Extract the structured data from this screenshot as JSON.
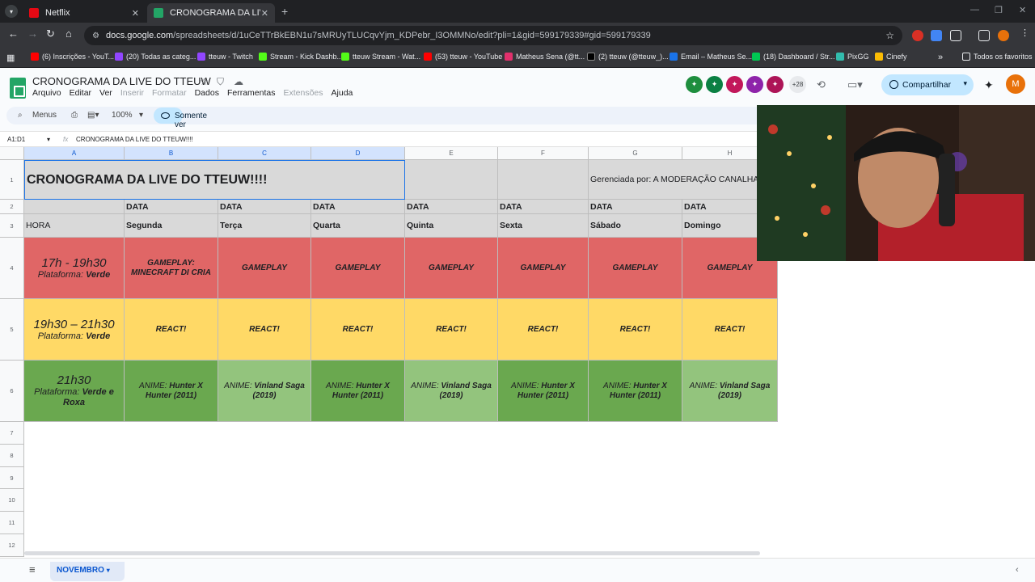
{
  "browser": {
    "tabs": [
      {
        "title": "Netflix",
        "close": "✕",
        "color": "#e50914"
      },
      {
        "title": "CRONOGRAMA DA LIVE DO TTEUW",
        "close": "✕",
        "color": "#23a566"
      }
    ],
    "new_tab": "+",
    "url_domain": "docs.google.com",
    "url_path": "/spreadsheets/d/1uCeTTrBkEBN1u7sMRUyTLUCqvYjm_KDPebr_I3OMMNo/edit?pli=1&gid=599179339#gid=599179339",
    "bookmarks": [
      {
        "label": "(6) Inscrições - YouT...",
        "color": "#ff0000"
      },
      {
        "label": "(20) Todas as categ...",
        "color": "#9146ff"
      },
      {
        "label": "tteuw - Twitch",
        "color": "#9146ff"
      },
      {
        "label": "Stream - Kick Dashb...",
        "color": "#53fc18"
      },
      {
        "label": "tteuw Stream - Wat...",
        "color": "#53fc18"
      },
      {
        "label": "(53) tteuw - YouTube",
        "color": "#ff0000"
      },
      {
        "label": "Matheus Sena (@tt...",
        "color": "#e1306c"
      },
      {
        "label": "(2) tteuw (@tteuw_)...",
        "color": "#000000"
      },
      {
        "label": "Email – Matheus Se...",
        "color": "#1a73e8"
      },
      {
        "label": "(18) Dashboard / Str...",
        "color": "#00c853"
      },
      {
        "label": "PixGG",
        "color": "#32bcad"
      },
      {
        "label": "Cinefy",
        "color": "#fbbc04"
      }
    ],
    "bookmarks_more": "»",
    "all_favorites": "Todos os favoritos"
  },
  "doc": {
    "title": "CRONOGRAMA DA LIVE DO TTEUW",
    "menus": [
      "Arquivo",
      "Editar",
      "Ver",
      "Inserir",
      "Formatar",
      "Dados",
      "Ferramentas",
      "Extensões",
      "Ajuda"
    ],
    "collaborators_more": "+28",
    "share_label": "Compartilhar",
    "user_initial": "M"
  },
  "toolbar": {
    "search_label": "Menus",
    "zoom": "100%",
    "view_only": "Somente ver"
  },
  "formula_bar": {
    "cell_ref": "A1:D1",
    "fx": "fx",
    "content": "CRONOGRAMA DA LIVE DO TTEUW!!!!"
  },
  "sheet": {
    "columns": [
      "A",
      "B",
      "C",
      "D",
      "E",
      "F",
      "G",
      "H"
    ],
    "rows": [
      "1",
      "2",
      "3",
      "4",
      "5",
      "6",
      "7",
      "8",
      "9",
      "10",
      "11",
      "12"
    ],
    "title": "CRONOGRAMA DA LIVE DO TTEUW!!!!",
    "managed_by": "Gerenciada por: A MODERAÇÃO CANALHA",
    "date_label": "DATA",
    "hour_label": "HORA",
    "days": [
      "Segunda",
      "Terça",
      "Quarta",
      "Quinta",
      "Sexta",
      "Sábado",
      "Domingo"
    ],
    "slots": [
      {
        "time": "17h - 19h30",
        "platform_prefix": "Plataforma:",
        "platform": "Verde",
        "items": [
          "GAMEPLAY: MINECRAFT DI CRIA",
          "GAMEPLAY",
          "GAMEPLAY",
          "GAMEPLAY",
          "GAMEPLAY",
          "GAMEPLAY",
          "GAMEPLAY"
        ]
      },
      {
        "time": "19h30 – 21h30",
        "platform_prefix": "Plataforma:",
        "platform": "Verde",
        "items": [
          "REACT!",
          "REACT!",
          "REACT!",
          "REACT!",
          "REACT!",
          "REACT!",
          "REACT!"
        ]
      },
      {
        "time": "21h30",
        "platform_prefix": "Plataforma:",
        "platform": "Verde e Roxa",
        "items": [
          {
            "prefix": "ANIME:",
            "text": "Hunter X Hunter (2011)"
          },
          {
            "prefix": "ANIME:",
            "text": "Vinland Saga (2019)"
          },
          {
            "prefix": "ANIME:",
            "text": "Hunter X Hunter (2011)"
          },
          {
            "prefix": "ANIME:",
            "text": "Vinland Saga (2019)"
          },
          {
            "prefix": "ANIME:",
            "text": "Hunter X Hunter (2011)"
          },
          {
            "prefix": "ANIME:",
            "text": "Hunter X Hunter (2011)"
          },
          {
            "prefix": "ANIME:",
            "text": "Vinland Saga (2019)"
          }
        ]
      }
    ]
  },
  "sheet_tabs": {
    "active": "NOVEMBRO"
  },
  "colors": {
    "red": "#e06666",
    "yellow": "#ffd966",
    "green": "#6aa84f",
    "light_green": "#93c47d",
    "gray": "#d9d9d9"
  }
}
